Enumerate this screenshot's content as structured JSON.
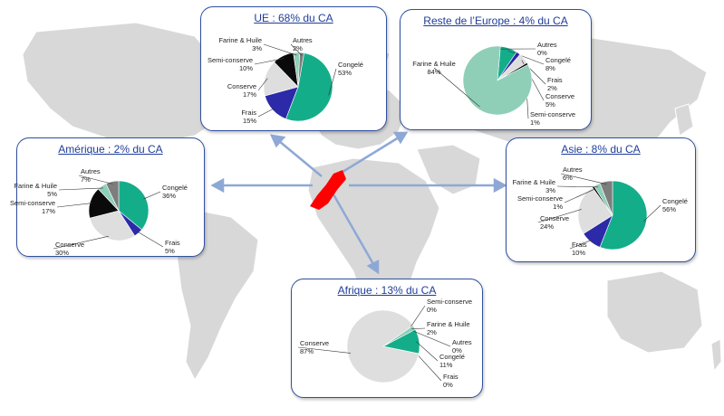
{
  "colors": {
    "Congelé": "#14ad8a",
    "Frais": "#2c2aa8",
    "Conserve": "#dedede",
    "Semi-conserve": "#0a0a0a",
    "Farine & Huile": "#8fcfb8",
    "Autres": "#7d7d7d",
    "panel_border": "#2f4f9f",
    "title_text": "#1f3d99",
    "arrow": "#8ea8d6",
    "map_land": "#d8d8d8",
    "map_ocean": "#ffffff",
    "morocco": "#ff0000"
  },
  "chart_data": [
    {
      "type": "pie",
      "region": "ue",
      "title": "UE : 68% du CA",
      "slices": [
        {
          "name": "Congelé",
          "value": 53,
          "label": "53%"
        },
        {
          "name": "Frais",
          "value": 15,
          "label": "15%"
        },
        {
          "name": "Conserve",
          "value": 17,
          "label": "17%"
        },
        {
          "name": "Semi-conserve",
          "value": 10,
          "label": "10%"
        },
        {
          "name": "Farine & Huile",
          "value": 3,
          "label": "3%"
        },
        {
          "name": "Autres",
          "value": 2,
          "label": "2%"
        }
      ]
    },
    {
      "type": "pie",
      "region": "reste-europe",
      "title": "Reste de l’Europe : 4% du CA",
      "slices": [
        {
          "name": "Congelé",
          "value": 8,
          "label": "8%"
        },
        {
          "name": "Frais",
          "value": 2,
          "label": "2%"
        },
        {
          "name": "Conserve",
          "value": 5,
          "label": "5%"
        },
        {
          "name": "Semi-conserve",
          "value": 1,
          "label": "1%"
        },
        {
          "name": "Farine & Huile",
          "value": 84,
          "label": "84%"
        },
        {
          "name": "Autres",
          "value": 0,
          "label": "0%"
        }
      ]
    },
    {
      "type": "pie",
      "region": "amerique",
      "title": "Amérique : 2% du CA",
      "slices": [
        {
          "name": "Congelé",
          "value": 36,
          "label": "36%"
        },
        {
          "name": "Frais",
          "value": 5,
          "label": "5%"
        },
        {
          "name": "Conserve",
          "value": 30,
          "label": "30%"
        },
        {
          "name": "Semi-conserve",
          "value": 17,
          "label": "17%"
        },
        {
          "name": "Farine & Huile",
          "value": 5,
          "label": "5%"
        },
        {
          "name": "Autres",
          "value": 7,
          "label": "7%"
        }
      ]
    },
    {
      "type": "pie",
      "region": "asie",
      "title": "Asie : 8% du CA",
      "slices": [
        {
          "name": "Congelé",
          "value": 56,
          "label": "56%"
        },
        {
          "name": "Frais",
          "value": 10,
          "label": "10%"
        },
        {
          "name": "Conserve",
          "value": 24,
          "label": "24%"
        },
        {
          "name": "Semi-conserve",
          "value": 1,
          "label": "1%"
        },
        {
          "name": "Farine & Huile",
          "value": 3,
          "label": "3%"
        },
        {
          "name": "Autres",
          "value": 6,
          "label": "6%"
        }
      ]
    },
    {
      "type": "pie",
      "region": "afrique",
      "title": "Afrique : 13% du CA",
      "slices": [
        {
          "name": "Congelé",
          "value": 11,
          "label": "11%"
        },
        {
          "name": "Frais",
          "value": 0,
          "label": "0%"
        },
        {
          "name": "Conserve",
          "value": 87,
          "label": "87%"
        },
        {
          "name": "Semi-conserve",
          "value": 0,
          "label": "0%"
        },
        {
          "name": "Farine & Huile",
          "value": 2,
          "label": "2%"
        },
        {
          "name": "Autres",
          "value": 0,
          "label": "0%"
        }
      ]
    }
  ]
}
